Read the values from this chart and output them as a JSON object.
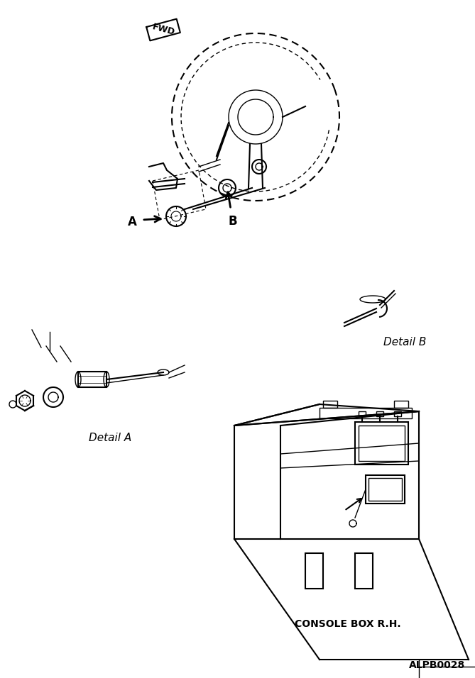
{
  "title": "",
  "background_color": "#ffffff",
  "text_color": "#000000",
  "line_color": "#000000",
  "labels": {
    "fwd": "FWD",
    "label_a": "A",
    "label_b": "B",
    "detail_a": "Detail A",
    "detail_b": "Detail B",
    "console_box": "CONSOLE BOX R.H.",
    "part_number": "ALPB0028"
  },
  "figsize": [
    6.69,
    9.56
  ],
  "dpi": 100
}
